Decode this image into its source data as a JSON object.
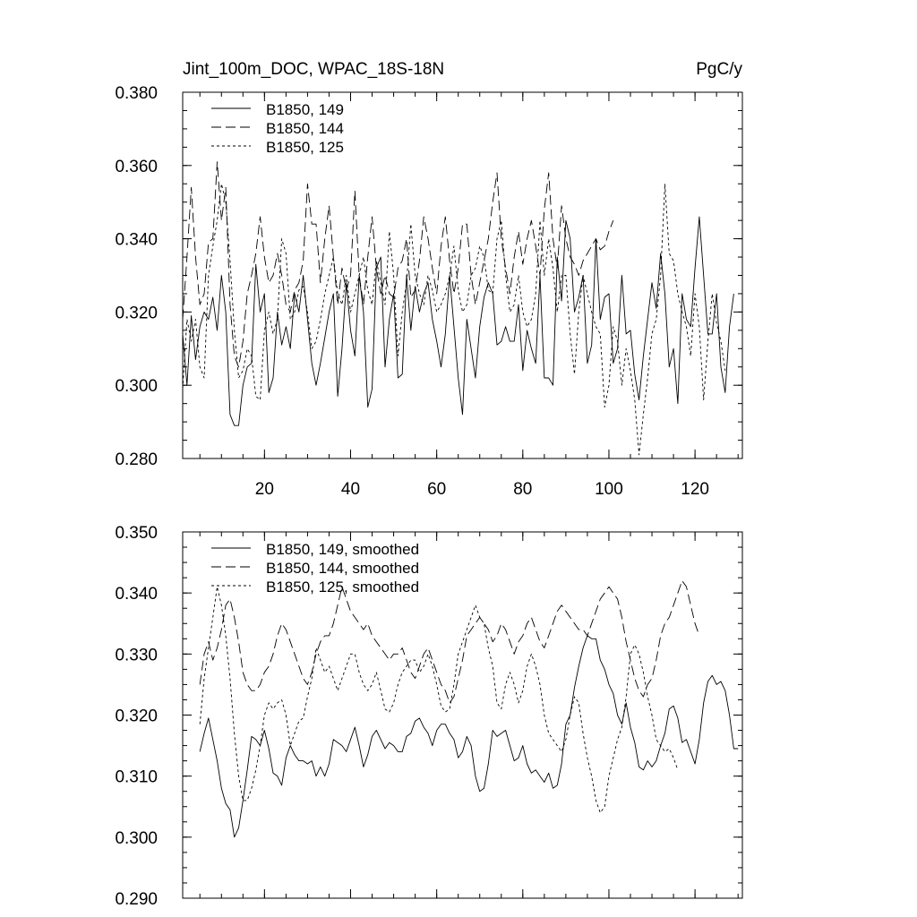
{
  "chart_data": [
    {
      "type": "line",
      "title_left": "Jint_100m_DOC, WPAC_18S-18N",
      "title_right": "PgC/y",
      "xlabel": "",
      "ylabel": "",
      "xlim": [
        1,
        131
      ],
      "ylim": [
        0.28,
        0.38
      ],
      "xticks": [
        20,
        40,
        60,
        80,
        100,
        120
      ],
      "xtick_labels": [
        "20",
        "40",
        "60",
        "80",
        "100",
        "120"
      ],
      "yticks": [
        0.28,
        0.3,
        0.32,
        0.34,
        0.36,
        0.38
      ],
      "ytick_labels": [
        "0.280",
        "0.300",
        "0.320",
        "0.340",
        "0.360",
        "0.380"
      ],
      "legend_position": "top-left",
      "series": [
        {
          "name": "B1850, 149",
          "style": "solid",
          "x_start": 1,
          "values": [
            0.314,
            0.3,
            0.319,
            0.307,
            0.316,
            0.32,
            0.318,
            0.324,
            0.315,
            0.33,
            0.32,
            0.292,
            0.289,
            0.289,
            0.3,
            0.305,
            0.306,
            0.333,
            0.32,
            0.325,
            0.298,
            0.302,
            0.32,
            0.311,
            0.316,
            0.31,
            0.325,
            0.32,
            0.33,
            0.318,
            0.306,
            0.3,
            0.306,
            0.313,
            0.32,
            0.325,
            0.297,
            0.31,
            0.328,
            0.315,
            0.308,
            0.33,
            0.32,
            0.294,
            0.299,
            0.332,
            0.335,
            0.305,
            0.318,
            0.325,
            0.302,
            0.303,
            0.33,
            0.315,
            0.327,
            0.32,
            0.325,
            0.328,
            0.318,
            0.312,
            0.305,
            0.314,
            0.33,
            0.316,
            0.302,
            0.292,
            0.318,
            0.31,
            0.302,
            0.316,
            0.324,
            0.328,
            0.325,
            0.311,
            0.312,
            0.316,
            0.312,
            0.312,
            0.322,
            0.304,
            0.315,
            0.31,
            0.306,
            0.33,
            0.302,
            0.302,
            0.3,
            0.335,
            0.323,
            0.345,
            0.34,
            0.32,
            0.324,
            0.33,
            0.306,
            0.311,
            0.34,
            0.318,
            0.324,
            0.325,
            0.306,
            0.31,
            0.33,
            0.314,
            0.315,
            0.303,
            0.296,
            0.308,
            0.318,
            0.328,
            0.321,
            0.336,
            0.325,
            0.305,
            0.31,
            0.295,
            0.325,
            0.318,
            0.316,
            0.332,
            0.346,
            0.33,
            0.314,
            0.314,
            0.325,
            0.305,
            0.298,
            0.316,
            0.325
          ]
        },
        {
          "name": "B1850, 144",
          "style": "long-dash",
          "x_start": 1,
          "values": [
            0.318,
            0.335,
            0.354,
            0.335,
            0.322,
            0.325,
            0.339,
            0.34,
            0.361,
            0.345,
            0.354,
            0.322,
            0.308,
            0.305,
            0.312,
            0.325,
            0.33,
            0.336,
            0.346,
            0.335,
            0.328,
            0.33,
            0.336,
            0.33,
            0.322,
            0.32,
            0.326,
            0.328,
            0.334,
            0.355,
            0.344,
            0.344,
            0.328,
            0.34,
            0.349,
            0.335,
            0.322,
            0.332,
            0.326,
            0.33,
            0.353,
            0.33,
            0.322,
            0.335,
            0.346,
            0.332,
            0.325,
            0.33,
            0.325,
            0.324,
            0.332,
            0.334,
            0.34,
            0.324,
            0.326,
            0.334,
            0.346,
            0.34,
            0.332,
            0.325,
            0.338,
            0.346,
            0.334,
            0.325,
            0.332,
            0.344,
            0.344,
            0.33,
            0.322,
            0.328,
            0.334,
            0.34,
            0.35,
            0.358,
            0.34,
            0.332,
            0.325,
            0.335,
            0.342,
            0.333,
            0.34,
            0.345,
            0.338,
            0.33,
            0.348,
            0.358,
            0.34,
            0.332,
            0.349,
            0.34,
            0.335,
            0.333,
            0.33,
            0.334,
            0.336,
            0.338,
            0.34,
            0.337,
            0.338,
            0.342,
            0.345
          ]
        },
        {
          "name": "B1850, 125",
          "style": "short-dash",
          "x_start": 1,
          "values": [
            0.299,
            0.318,
            0.312,
            0.318,
            0.305,
            0.302,
            0.33,
            0.338,
            0.345,
            0.355,
            0.35,
            0.334,
            0.315,
            0.302,
            0.304,
            0.31,
            0.308,
            0.297,
            0.296,
            0.315,
            0.32,
            0.314,
            0.318,
            0.34,
            0.336,
            0.318,
            0.32,
            0.326,
            0.327,
            0.32,
            0.31,
            0.312,
            0.318,
            0.325,
            0.33,
            0.335,
            0.325,
            0.322,
            0.33,
            0.32,
            0.325,
            0.33,
            0.335,
            0.326,
            0.322,
            0.334,
            0.328,
            0.322,
            0.342,
            0.33,
            0.308,
            0.32,
            0.328,
            0.344,
            0.33,
            0.325,
            0.322,
            0.33,
            0.326,
            0.32,
            0.322,
            0.325,
            0.33,
            0.338,
            0.326,
            0.32,
            0.322,
            0.33,
            0.332,
            0.338,
            0.335,
            0.326,
            0.325,
            0.34,
            0.345,
            0.33,
            0.32,
            0.322,
            0.33,
            0.32,
            0.316,
            0.318,
            0.325,
            0.345,
            0.33,
            0.34,
            0.332,
            0.32,
            0.33,
            0.33,
            0.314,
            0.303,
            0.32,
            0.33,
            0.325,
            0.32,
            0.316,
            0.314,
            0.294,
            0.3,
            0.316,
            0.312,
            0.3,
            0.31,
            0.304,
            0.296,
            0.281,
            0.292,
            0.302,
            0.314,
            0.318,
            0.33,
            0.355,
            0.336,
            0.334,
            0.325,
            0.32,
            0.316,
            0.308,
            0.325,
            0.316,
            0.296,
            0.312,
            0.325,
            0.317,
            0.312,
            0.304
          ]
        }
      ]
    },
    {
      "type": "line",
      "xlabel": "",
      "ylabel": "",
      "xlim": [
        1,
        131
      ],
      "ylim": [
        0.29,
        0.35
      ],
      "xticks": [
        20,
        40,
        60,
        80,
        100,
        120
      ],
      "yticks": [
        0.29,
        0.3,
        0.31,
        0.32,
        0.33,
        0.34,
        0.35
      ],
      "ytick_labels": [
        "0.290",
        "0.300",
        "0.310",
        "0.320",
        "0.330",
        "0.340",
        "0.350"
      ],
      "legend_position": "top-left",
      "series": [
        {
          "name": "B1850, 149, smoothed",
          "style": "solid",
          "x_start": 5,
          "values": [
            0.314,
            0.317,
            0.3195,
            0.316,
            0.3125,
            0.308,
            0.3055,
            0.3045,
            0.3,
            0.3015,
            0.306,
            0.311,
            0.3165,
            0.316,
            0.315,
            0.3175,
            0.3145,
            0.3105,
            0.31,
            0.3085,
            0.313,
            0.315,
            0.3135,
            0.3125,
            0.3125,
            0.312,
            0.3125,
            0.31,
            0.3115,
            0.31,
            0.312,
            0.316,
            0.3155,
            0.315,
            0.314,
            0.316,
            0.318,
            0.315,
            0.3115,
            0.3135,
            0.3165,
            0.3175,
            0.316,
            0.3145,
            0.3155,
            0.315,
            0.314,
            0.314,
            0.3165,
            0.317,
            0.319,
            0.3195,
            0.318,
            0.317,
            0.315,
            0.3175,
            0.3185,
            0.3185,
            0.317,
            0.316,
            0.313,
            0.314,
            0.3165,
            0.315,
            0.31,
            0.3075,
            0.308,
            0.312,
            0.3175,
            0.3165,
            0.317,
            0.3175,
            0.315,
            0.3125,
            0.313,
            0.315,
            0.312,
            0.3105,
            0.311,
            0.31,
            0.309,
            0.3105,
            0.308,
            0.3085,
            0.312,
            0.3185,
            0.32,
            0.3245,
            0.328,
            0.331,
            0.333,
            0.3325,
            0.3325,
            0.329,
            0.3275,
            0.325,
            0.3235,
            0.32,
            0.3185,
            0.322,
            0.318,
            0.3155,
            0.3115,
            0.311,
            0.3125,
            0.3115,
            0.3125,
            0.315,
            0.317,
            0.321,
            0.3215,
            0.3195,
            0.3155,
            0.316,
            0.314,
            0.312,
            0.316,
            0.322,
            0.3255,
            0.3265,
            0.325,
            0.3255,
            0.324,
            0.32,
            0.3145,
            0.3145
          ]
        },
        {
          "name": "B1850, 144, smoothed",
          "style": "long-dash",
          "x_start": 5,
          "values": [
            0.325,
            0.33,
            0.332,
            0.329,
            0.331,
            0.334,
            0.338,
            0.339,
            0.336,
            0.332,
            0.327,
            0.325,
            0.324,
            0.324,
            0.325,
            0.327,
            0.328,
            0.33,
            0.333,
            0.335,
            0.334,
            0.332,
            0.33,
            0.328,
            0.326,
            0.325,
            0.327,
            0.33,
            0.332,
            0.333,
            0.333,
            0.335,
            0.338,
            0.341,
            0.339,
            0.337,
            0.336,
            0.335,
            0.334,
            0.335,
            0.333,
            0.332,
            0.331,
            0.33,
            0.329,
            0.33,
            0.33,
            0.331,
            0.329,
            0.327,
            0.326,
            0.328,
            0.33,
            0.331,
            0.329,
            0.327,
            0.325,
            0.324,
            0.322,
            0.323,
            0.326,
            0.329,
            0.333,
            0.334,
            0.335,
            0.336,
            0.335,
            0.334,
            0.332,
            0.333,
            0.335,
            0.334,
            0.332,
            0.33,
            0.332,
            0.333,
            0.335,
            0.336,
            0.334,
            0.332,
            0.331,
            0.333,
            0.335,
            0.337,
            0.338,
            0.337,
            0.336,
            0.335,
            0.334,
            0.334,
            0.333,
            0.335,
            0.337,
            0.339,
            0.34,
            0.341,
            0.34,
            0.339,
            0.336,
            0.332,
            0.329,
            0.326,
            0.324,
            0.323,
            0.325,
            0.326,
            0.329,
            0.333,
            0.335,
            0.336,
            0.338,
            0.34,
            0.342,
            0.341,
            0.338,
            0.335,
            0.333
          ]
        },
        {
          "name": "B1850, 125, smoothed",
          "style": "short-dash",
          "x_start": 5,
          "values": [
            0.3185,
            0.326,
            0.331,
            0.336,
            0.341,
            0.338,
            0.333,
            0.326,
            0.317,
            0.31,
            0.306,
            0.306,
            0.308,
            0.311,
            0.315,
            0.32,
            0.322,
            0.321,
            0.322,
            0.3225,
            0.32,
            0.315,
            0.317,
            0.319,
            0.3195,
            0.323,
            0.326,
            0.331,
            0.329,
            0.327,
            0.328,
            0.326,
            0.324,
            0.326,
            0.328,
            0.33,
            0.33,
            0.327,
            0.325,
            0.324,
            0.325,
            0.327,
            0.324,
            0.321,
            0.3205,
            0.322,
            0.325,
            0.327,
            0.328,
            0.329,
            0.329,
            0.327,
            0.328,
            0.33,
            0.328,
            0.325,
            0.3215,
            0.3205,
            0.321,
            0.325,
            0.33,
            0.332,
            0.334,
            0.336,
            0.338,
            0.336,
            0.335,
            0.331,
            0.328,
            0.322,
            0.321,
            0.325,
            0.327,
            0.325,
            0.322,
            0.324,
            0.328,
            0.33,
            0.328,
            0.325,
            0.32,
            0.317,
            0.316,
            0.315,
            0.314,
            0.316,
            0.32,
            0.323,
            0.322,
            0.317,
            0.313,
            0.31,
            0.306,
            0.304,
            0.305,
            0.31,
            0.313,
            0.316,
            0.318,
            0.323,
            0.33,
            0.3315,
            0.33,
            0.327,
            0.323,
            0.32,
            0.316,
            0.315,
            0.314,
            0.3145,
            0.313,
            0.311
          ]
        }
      ]
    }
  ]
}
